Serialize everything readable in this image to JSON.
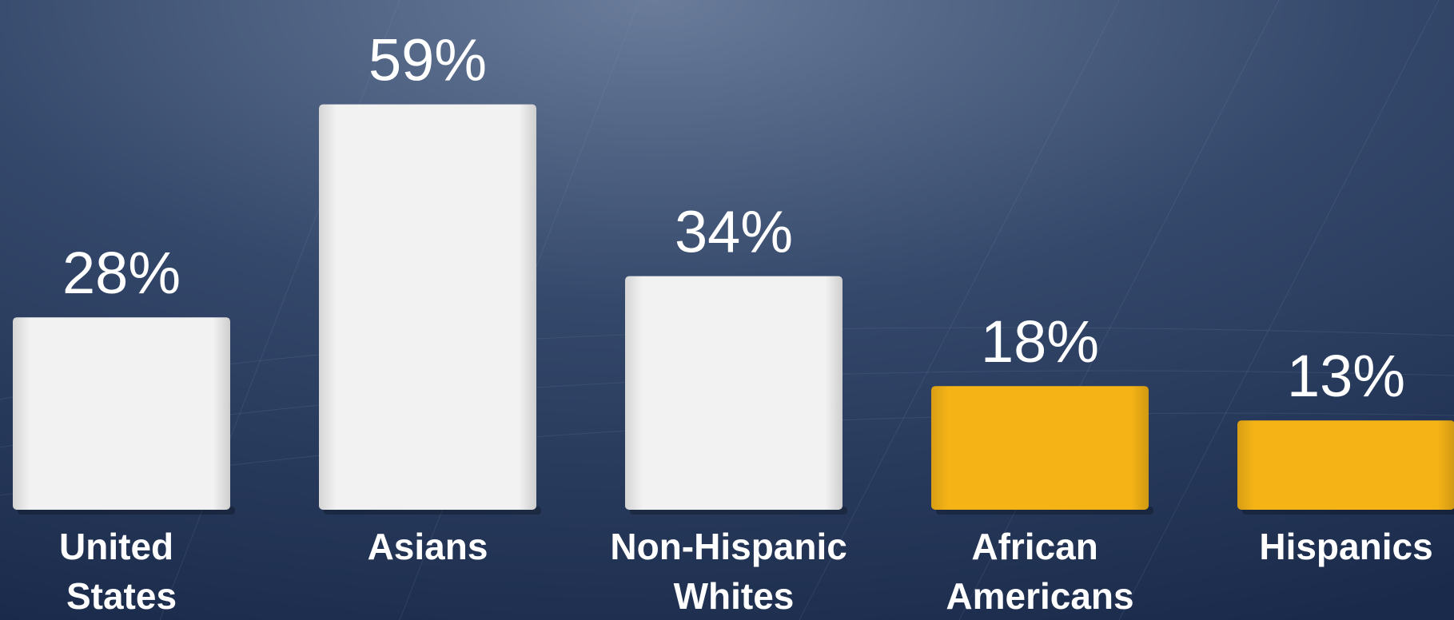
{
  "chart_data": {
    "type": "bar",
    "categories": [
      "United States",
      "Asians",
      "Non-Hispanic Whites",
      "African Americans",
      "Hispanics"
    ],
    "values": [
      28,
      59,
      34,
      18,
      13
    ],
    "value_labels": [
      "28%",
      "59%",
      "34%",
      "18%",
      "13%"
    ],
    "colors": [
      "#f2f2f2",
      "#f2f2f2",
      "#f2f2f2",
      "#f5b316",
      "#f5b316"
    ]
  }
}
